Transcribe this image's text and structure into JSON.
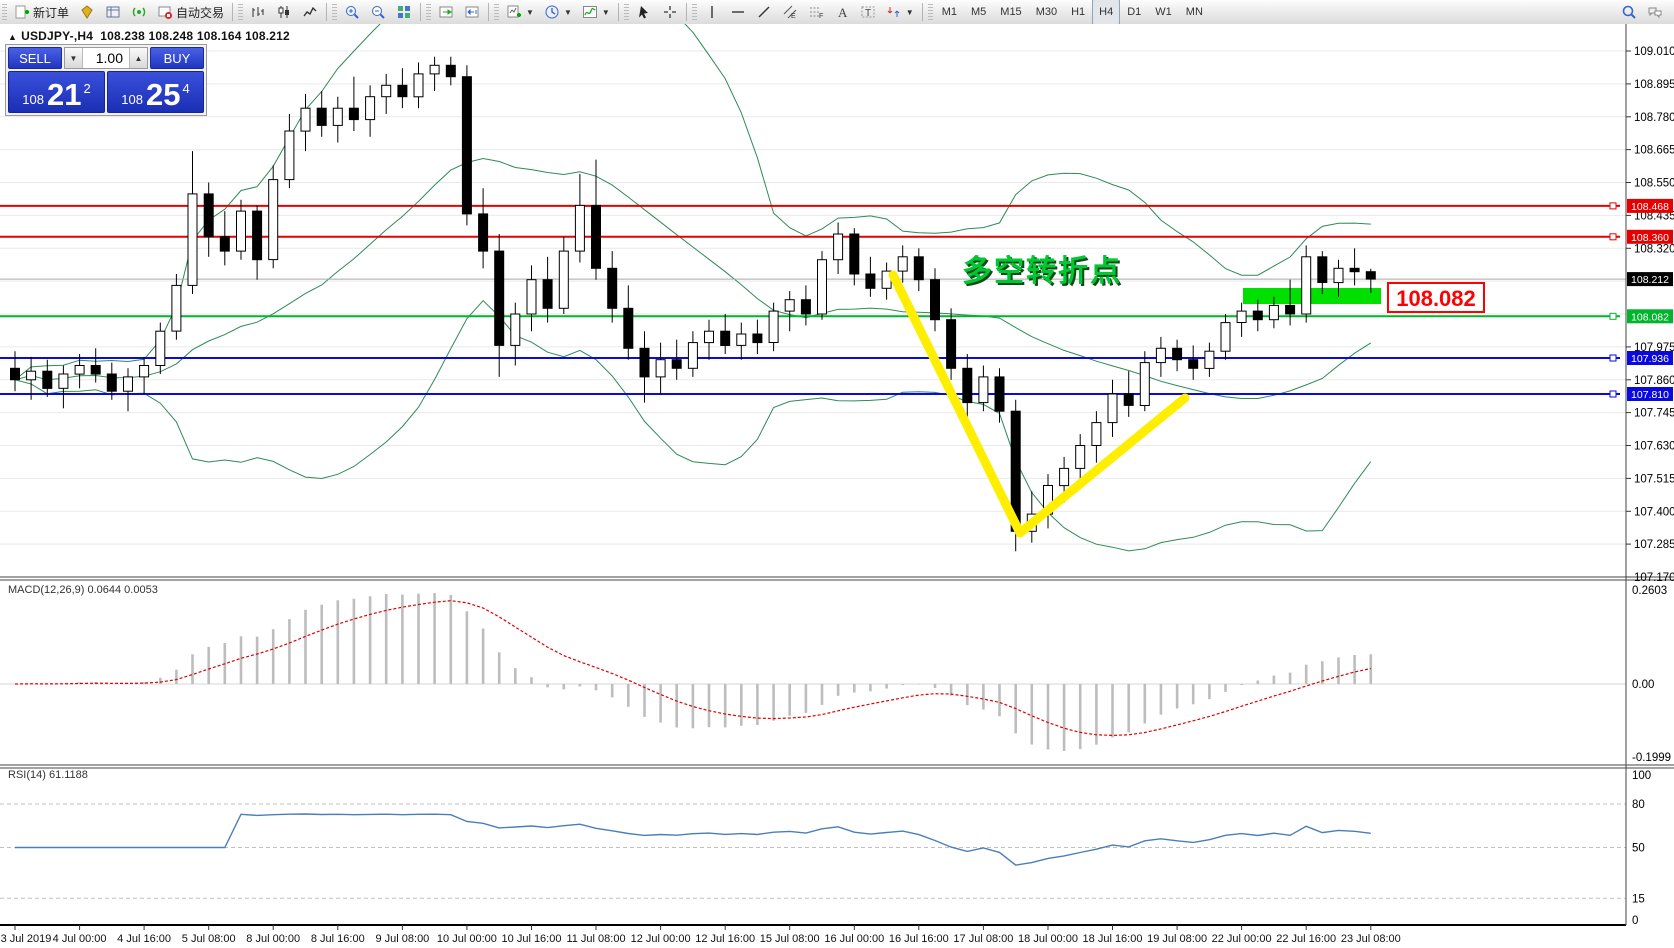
{
  "header": {
    "collapse_icon": "▲",
    "symbol": "USDJPY-,H4",
    "ohlc": "108.238 108.248 108.164 108.212"
  },
  "toolbar": {
    "groups": [
      {
        "items": [
          {
            "name": "new-order",
            "label": "新订单"
          },
          {
            "name": "market-watch"
          },
          {
            "name": "data-window"
          },
          {
            "name": "navigator"
          },
          {
            "name": "auto-trading",
            "label": "自动交易"
          }
        ]
      },
      {
        "items": [
          {
            "name": "bar-chart"
          },
          {
            "name": "candle-chart"
          },
          {
            "name": "line-chart"
          }
        ]
      },
      {
        "items": [
          {
            "name": "zoom-in"
          },
          {
            "name": "zoom-out"
          },
          {
            "name": "tile-windows"
          }
        ]
      },
      {
        "items": [
          {
            "name": "auto-scroll"
          },
          {
            "name": "chart-shift"
          }
        ]
      },
      {
        "items": [
          {
            "name": "new-chart",
            "dropdown": true
          },
          {
            "name": "profiles",
            "dropdown": true
          },
          {
            "name": "indicators",
            "dropdown": true
          }
        ]
      },
      {
        "items": [
          {
            "name": "cursor"
          },
          {
            "name": "crosshair"
          }
        ]
      },
      {
        "items": [
          {
            "name": "vertical-line"
          },
          {
            "name": "horizontal-line"
          },
          {
            "name": "trendline"
          },
          {
            "name": "equidistant-channel"
          },
          {
            "name": "fibonacci"
          },
          {
            "name": "text"
          },
          {
            "name": "text-label"
          },
          {
            "name": "arrows",
            "dropdown": true
          }
        ]
      },
      {
        "timeframes": [
          "M1",
          "M5",
          "M15",
          "M30",
          "H1",
          "H4",
          "D1",
          "W1",
          "MN"
        ],
        "active": "H4"
      }
    ],
    "right": [
      {
        "name": "search"
      },
      {
        "name": "chat"
      }
    ]
  },
  "trade_panel": {
    "sell_label": "SELL",
    "buy_label": "BUY",
    "volume": "1.00",
    "sell_price": {
      "prefix": "108",
      "big": "21",
      "sup": "2"
    },
    "buy_price": {
      "prefix": "108",
      "big": "25",
      "sup": "4"
    }
  },
  "indicator_labels": {
    "macd": "MACD(12,26,9) 0.0644 0.0053",
    "rsi": "RSI(14) 61.1188"
  },
  "chart_data": [
    {
      "type": "candlestick",
      "symbol": "USDJPY",
      "timeframe": "H4",
      "y_range": [
        107.17,
        109.01
      ],
      "grid_step": 0.115,
      "y_ticks": [
        "109.010",
        "108.895",
        "108.780",
        "108.665",
        "108.550",
        "108.435",
        "108.320",
        "107.975",
        "107.860",
        "107.745",
        "107.630",
        "107.515",
        "107.400",
        "107.285",
        "107.170"
      ],
      "time_labels": [
        "3 Jul 2019",
        "4 Jul 00:00",
        "4 Jul 16:00",
        "5 Jul 08:00",
        "8 Jul 00:00",
        "8 Jul 16:00",
        "9 Jul 08:00",
        "10 Jul 00:00",
        "10 Jul 16:00",
        "11 Jul 08:00",
        "12 Jul 00:00",
        "12 Jul 16:00",
        "15 Jul 08:00",
        "16 Jul 00:00",
        "16 Jul 16:00",
        "17 Jul 08:00",
        "18 Jul 00:00",
        "18 Jul 16:00",
        "19 Jul 08:00",
        "22 Jul 00:00",
        "22 Jul 16:00",
        "23 Jul 08:00"
      ],
      "bars_per_label": 4,
      "bollinger": {
        "period": 20,
        "deviation": 2,
        "color": "#2e8b57"
      },
      "h_lines": [
        {
          "price": 108.468,
          "label": "108.468",
          "color": "#e60000"
        },
        {
          "price": 108.36,
          "label": "108.360",
          "color": "#e60000"
        },
        {
          "price": 108.082,
          "label": "108.082",
          "color": "#00b42c"
        },
        {
          "price": 107.936,
          "label": "107.936",
          "color": "#0a0ae0"
        },
        {
          "price": 107.81,
          "label": "107.810",
          "color": "#0a0ae0"
        }
      ],
      "current_price": {
        "value": 108.212,
        "label": "108.212",
        "badge_color": "#000000"
      },
      "annotations": {
        "turning_point_text": "多空转折点",
        "turning_point_color": "#00c832",
        "v_shape_color": "#ffee00",
        "zone_color": "#00e000",
        "price_callout": "108.082",
        "callout_color": "#ff0000"
      },
      "ohlc": [
        [
          107.9,
          107.96,
          107.82,
          107.86
        ],
        [
          107.86,
          107.94,
          107.79,
          107.89
        ],
        [
          107.89,
          107.93,
          107.8,
          107.83
        ],
        [
          107.83,
          107.91,
          107.76,
          107.88
        ],
        [
          107.88,
          107.95,
          107.83,
          107.91
        ],
        [
          107.91,
          107.97,
          107.85,
          107.88
        ],
        [
          107.88,
          107.92,
          107.79,
          107.82
        ],
        [
          107.82,
          107.9,
          107.75,
          107.87
        ],
        [
          107.87,
          107.94,
          107.81,
          107.91
        ],
        [
          107.91,
          108.06,
          107.88,
          108.03
        ],
        [
          108.03,
          108.23,
          108.0,
          108.19
        ],
        [
          108.19,
          108.66,
          108.16,
          108.51
        ],
        [
          108.51,
          108.55,
          108.29,
          108.36
        ],
        [
          108.36,
          108.45,
          108.26,
          108.31
        ],
        [
          108.31,
          108.49,
          108.28,
          108.45
        ],
        [
          108.45,
          108.47,
          108.21,
          108.28
        ],
        [
          108.28,
          108.61,
          108.25,
          108.56
        ],
        [
          108.56,
          108.79,
          108.53,
          108.73
        ],
        [
          108.73,
          108.86,
          108.66,
          108.81
        ],
        [
          108.81,
          108.87,
          108.71,
          108.75
        ],
        [
          108.75,
          108.85,
          108.69,
          108.81
        ],
        [
          108.81,
          108.92,
          108.73,
          108.77
        ],
        [
          108.77,
          108.89,
          108.71,
          108.85
        ],
        [
          108.85,
          108.93,
          108.79,
          108.89
        ],
        [
          108.89,
          108.95,
          108.81,
          108.85
        ],
        [
          108.85,
          108.97,
          108.81,
          108.93
        ],
        [
          108.93,
          108.99,
          108.87,
          108.96
        ],
        [
          108.96,
          108.99,
          108.89,
          108.92
        ],
        [
          108.92,
          108.96,
          108.4,
          108.44
        ],
        [
          108.44,
          108.53,
          108.25,
          108.31
        ],
        [
          108.31,
          108.37,
          107.87,
          107.98
        ],
        [
          107.98,
          108.13,
          107.91,
          108.09
        ],
        [
          108.09,
          108.26,
          108.03,
          108.21
        ],
        [
          108.21,
          108.29,
          108.06,
          108.11
        ],
        [
          108.11,
          108.36,
          108.09,
          108.31
        ],
        [
          108.31,
          108.58,
          108.27,
          108.47
        ],
        [
          108.47,
          108.63,
          108.21,
          108.25
        ],
        [
          108.25,
          108.31,
          108.06,
          108.11
        ],
        [
          108.11,
          108.19,
          107.93,
          107.97
        ],
        [
          107.97,
          108.03,
          107.78,
          107.87
        ],
        [
          107.87,
          107.99,
          107.81,
          107.93
        ],
        [
          107.93,
          108.0,
          107.86,
          107.9
        ],
        [
          107.9,
          108.03,
          107.87,
          107.99
        ],
        [
          107.99,
          108.07,
          107.93,
          108.03
        ],
        [
          108.03,
          108.09,
          107.95,
          107.98
        ],
        [
          107.98,
          108.06,
          107.93,
          108.02
        ],
        [
          108.02,
          108.07,
          107.95,
          107.99
        ],
        [
          107.99,
          108.13,
          107.96,
          108.1
        ],
        [
          108.1,
          108.17,
          108.03,
          108.14
        ],
        [
          108.14,
          108.19,
          108.05,
          108.09
        ],
        [
          108.09,
          108.31,
          108.07,
          108.28
        ],
        [
          108.28,
          108.41,
          108.23,
          108.37
        ],
        [
          108.37,
          108.39,
          108.19,
          108.23
        ],
        [
          108.23,
          108.29,
          108.15,
          108.18
        ],
        [
          108.18,
          108.27,
          108.14,
          108.24
        ],
        [
          108.24,
          108.33,
          108.2,
          108.29
        ],
        [
          108.29,
          108.32,
          108.17,
          108.21
        ],
        [
          108.21,
          108.25,
          108.03,
          108.07
        ],
        [
          108.07,
          108.11,
          107.86,
          107.9
        ],
        [
          107.9,
          107.95,
          107.72,
          107.78
        ],
        [
          107.78,
          107.91,
          107.75,
          107.87
        ],
        [
          107.87,
          107.9,
          107.71,
          107.75
        ],
        [
          107.75,
          107.79,
          107.26,
          107.33
        ],
        [
          107.33,
          107.47,
          107.29,
          107.39
        ],
        [
          107.39,
          107.53,
          107.34,
          107.49
        ],
        [
          107.49,
          107.59,
          107.43,
          107.55
        ],
        [
          107.55,
          107.67,
          107.51,
          107.63
        ],
        [
          107.63,
          107.75,
          107.57,
          107.71
        ],
        [
          107.71,
          107.86,
          107.66,
          107.81
        ],
        [
          107.81,
          107.89,
          107.73,
          107.77
        ],
        [
          107.77,
          107.96,
          107.75,
          107.92
        ],
        [
          107.92,
          108.01,
          107.87,
          107.97
        ],
        [
          107.97,
          108.0,
          107.89,
          107.93
        ],
        [
          107.93,
          107.98,
          107.86,
          107.9
        ],
        [
          107.9,
          107.99,
          107.87,
          107.96
        ],
        [
          107.96,
          108.09,
          107.93,
          108.06
        ],
        [
          108.06,
          108.13,
          108.01,
          108.1
        ],
        [
          108.1,
          108.14,
          108.03,
          108.07
        ],
        [
          108.07,
          108.15,
          108.04,
          108.12
        ],
        [
          108.12,
          108.21,
          108.05,
          108.09
        ],
        [
          108.09,
          108.33,
          108.06,
          108.29
        ],
        [
          108.29,
          108.31,
          108.16,
          108.2
        ],
        [
          108.2,
          108.28,
          108.15,
          108.25
        ],
        [
          108.25,
          108.32,
          108.19,
          108.238
        ],
        [
          108.238,
          108.248,
          108.164,
          108.212
        ]
      ]
    },
    {
      "type": "macd",
      "params": [
        12,
        26,
        9
      ],
      "display_values": [
        "0.0644",
        "0.0053"
      ],
      "axis_labels": [
        "0.2603",
        "0.00",
        "-0.1999"
      ],
      "histogram_color": "#bdbdbd",
      "signal_color": "#e00000",
      "computed_from": "ohlc closes"
    },
    {
      "type": "rsi",
      "period": 14,
      "display_value": "61.1188",
      "levels": [
        "100",
        "80",
        "50",
        "15",
        "0"
      ],
      "dashed_levels": [
        80,
        50,
        15
      ],
      "line_color": "#4a7ebb",
      "computed_from": "ohlc closes"
    }
  ]
}
